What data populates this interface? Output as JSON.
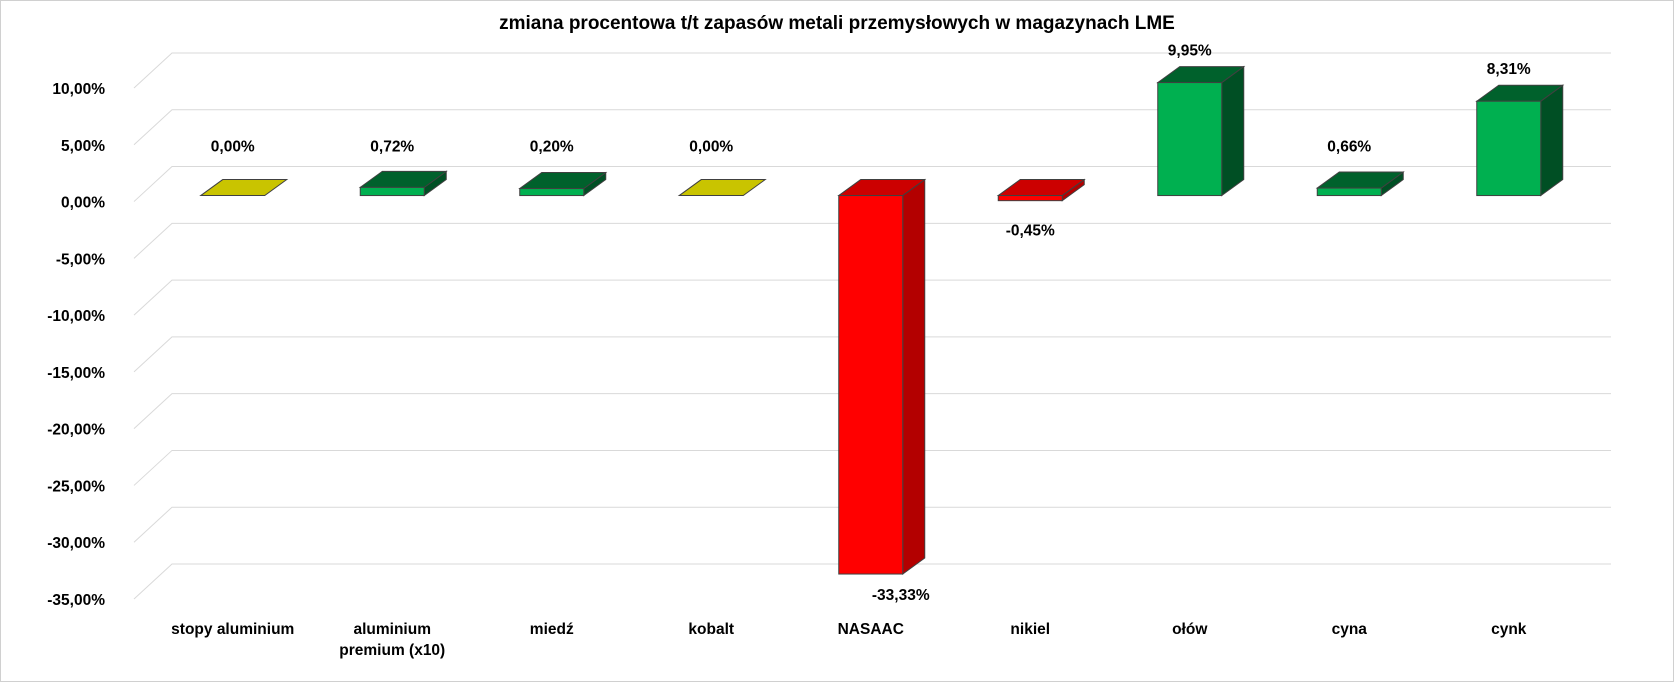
{
  "chart_data": {
    "type": "bar",
    "style": "3d-column",
    "title": "zmiana procentowa t/t zapasów metali przemysłowych w magazynach LME",
    "xlabel": "",
    "ylabel": "",
    "ylim": [
      -35,
      10
    ],
    "ytick_values": [
      10,
      5,
      0,
      -5,
      -10,
      -15,
      -20,
      -25,
      -30,
      -35
    ],
    "ytick_labels": [
      "10,00%",
      "5,00%",
      "0,00%",
      "-5,00%",
      "-10,00%",
      "-15,00%",
      "-20,00%",
      "-25,00%",
      "-30,00%",
      "-35,00%"
    ],
    "grid": true,
    "legend": "none",
    "categories": [
      [
        "stopy aluminium"
      ],
      [
        "aluminium",
        "premium (x10)"
      ],
      [
        "miedź"
      ],
      [
        "kobalt"
      ],
      [
        "NASAAC"
      ],
      [
        "nikiel"
      ],
      [
        "ołów"
      ],
      [
        "cyna"
      ],
      [
        "cynk"
      ]
    ],
    "values": [
      0.0,
      0.72,
      0.2,
      0.0,
      -33.33,
      -0.45,
      9.95,
      0.66,
      8.31
    ],
    "data_labels": [
      "0,00%",
      "0,72%",
      "0,20%",
      "0,00%",
      "-33,33%",
      "-0,45%",
      "9,95%",
      "0,66%",
      "8,31%"
    ],
    "colors": {
      "positive": "#00b050",
      "negative": "#ff0000",
      "zero": "#c9c400"
    }
  }
}
